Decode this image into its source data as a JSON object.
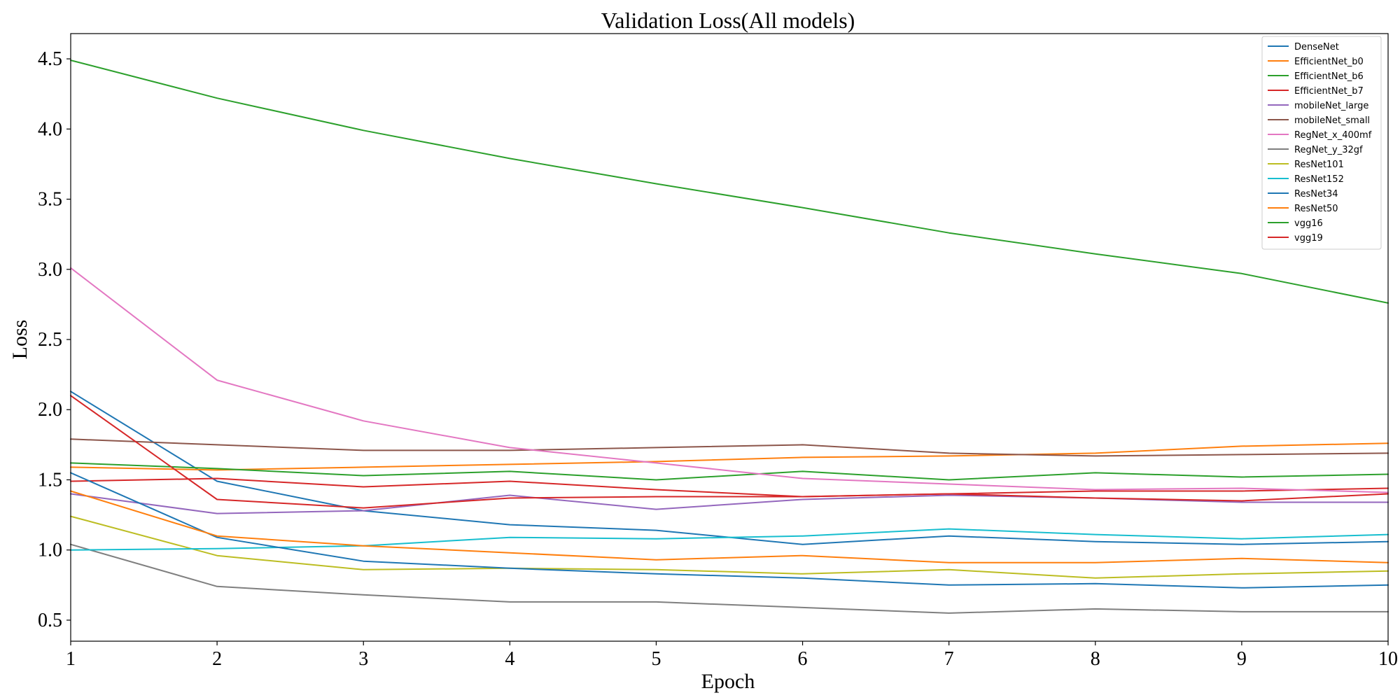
{
  "chart_data": {
    "type": "line",
    "title": "Validation Loss(All models)",
    "xlabel": "Epoch",
    "ylabel": "Loss",
    "x": [
      1,
      2,
      3,
      4,
      5,
      6,
      7,
      8,
      9,
      10
    ],
    "xlim": [
      1,
      10
    ],
    "ylim": [
      0.35,
      4.68
    ],
    "xticks": [
      1,
      2,
      3,
      4,
      5,
      6,
      7,
      8,
      9,
      10
    ],
    "yticks": [
      0.5,
      1.0,
      1.5,
      2.0,
      2.5,
      3.0,
      3.5,
      4.0,
      4.5
    ],
    "grid": false,
    "legend_position": "top-right",
    "series": [
      {
        "name": "DenseNet",
        "color": "#1f77b4",
        "values": [
          2.13,
          1.49,
          1.28,
          1.18,
          1.14,
          1.04,
          1.1,
          1.06,
          1.04,
          1.06
        ]
      },
      {
        "name": "EfficientNet_b0",
        "color": "#ff7f0e",
        "values": [
          1.59,
          1.57,
          1.59,
          1.61,
          1.63,
          1.66,
          1.67,
          1.69,
          1.74,
          1.76
        ]
      },
      {
        "name": "EfficientNet_b6",
        "color": "#2ca02c",
        "values": [
          1.62,
          1.58,
          1.53,
          1.56,
          1.5,
          1.56,
          1.5,
          1.55,
          1.52,
          1.54
        ]
      },
      {
        "name": "EfficientNet_b7",
        "color": "#d62728",
        "values": [
          1.49,
          1.51,
          1.45,
          1.49,
          1.43,
          1.38,
          1.4,
          1.42,
          1.42,
          1.44
        ]
      },
      {
        "name": "mobileNet_large",
        "color": "#9467bd",
        "values": [
          1.4,
          1.26,
          1.28,
          1.39,
          1.29,
          1.36,
          1.39,
          1.37,
          1.34,
          1.34
        ]
      },
      {
        "name": "mobileNet_small",
        "color": "#8c564b",
        "values": [
          1.79,
          1.75,
          1.71,
          1.71,
          1.73,
          1.75,
          1.69,
          1.67,
          1.68,
          1.69
        ]
      },
      {
        "name": "RegNet_x_400mf",
        "color": "#e377c2",
        "values": [
          3.01,
          2.21,
          1.92,
          1.73,
          1.62,
          1.51,
          1.47,
          1.43,
          1.44,
          1.41
        ]
      },
      {
        "name": "RegNet_y_32gf",
        "color": "#7f7f7f",
        "values": [
          1.04,
          0.74,
          0.68,
          0.63,
          0.63,
          0.59,
          0.55,
          0.58,
          0.56,
          0.56
        ]
      },
      {
        "name": "ResNet101",
        "color": "#bcbd22",
        "values": [
          1.24,
          0.96,
          0.86,
          0.87,
          0.86,
          0.83,
          0.86,
          0.8,
          0.83,
          0.85
        ]
      },
      {
        "name": "ResNet152",
        "color": "#17becf",
        "values": [
          1.0,
          1.01,
          1.03,
          1.09,
          1.08,
          1.1,
          1.15,
          1.11,
          1.08,
          1.11
        ]
      },
      {
        "name": "ResNet34",
        "color": "#1f77b4",
        "values": [
          1.55,
          1.09,
          0.92,
          0.87,
          0.83,
          0.8,
          0.75,
          0.76,
          0.73,
          0.75
        ]
      },
      {
        "name": "ResNet50",
        "color": "#ff7f0e",
        "values": [
          1.42,
          1.1,
          1.03,
          0.98,
          0.93,
          0.96,
          0.91,
          0.91,
          0.94,
          0.91
        ]
      },
      {
        "name": "vgg16",
        "color": "#2ca02c",
        "values": [
          4.49,
          4.22,
          3.99,
          3.79,
          3.61,
          3.44,
          3.26,
          3.11,
          2.97,
          2.76
        ]
      },
      {
        "name": "vgg19",
        "color": "#d62728",
        "values": [
          2.1,
          1.36,
          1.3,
          1.37,
          1.38,
          1.38,
          1.4,
          1.37,
          1.35,
          1.4
        ]
      }
    ]
  }
}
